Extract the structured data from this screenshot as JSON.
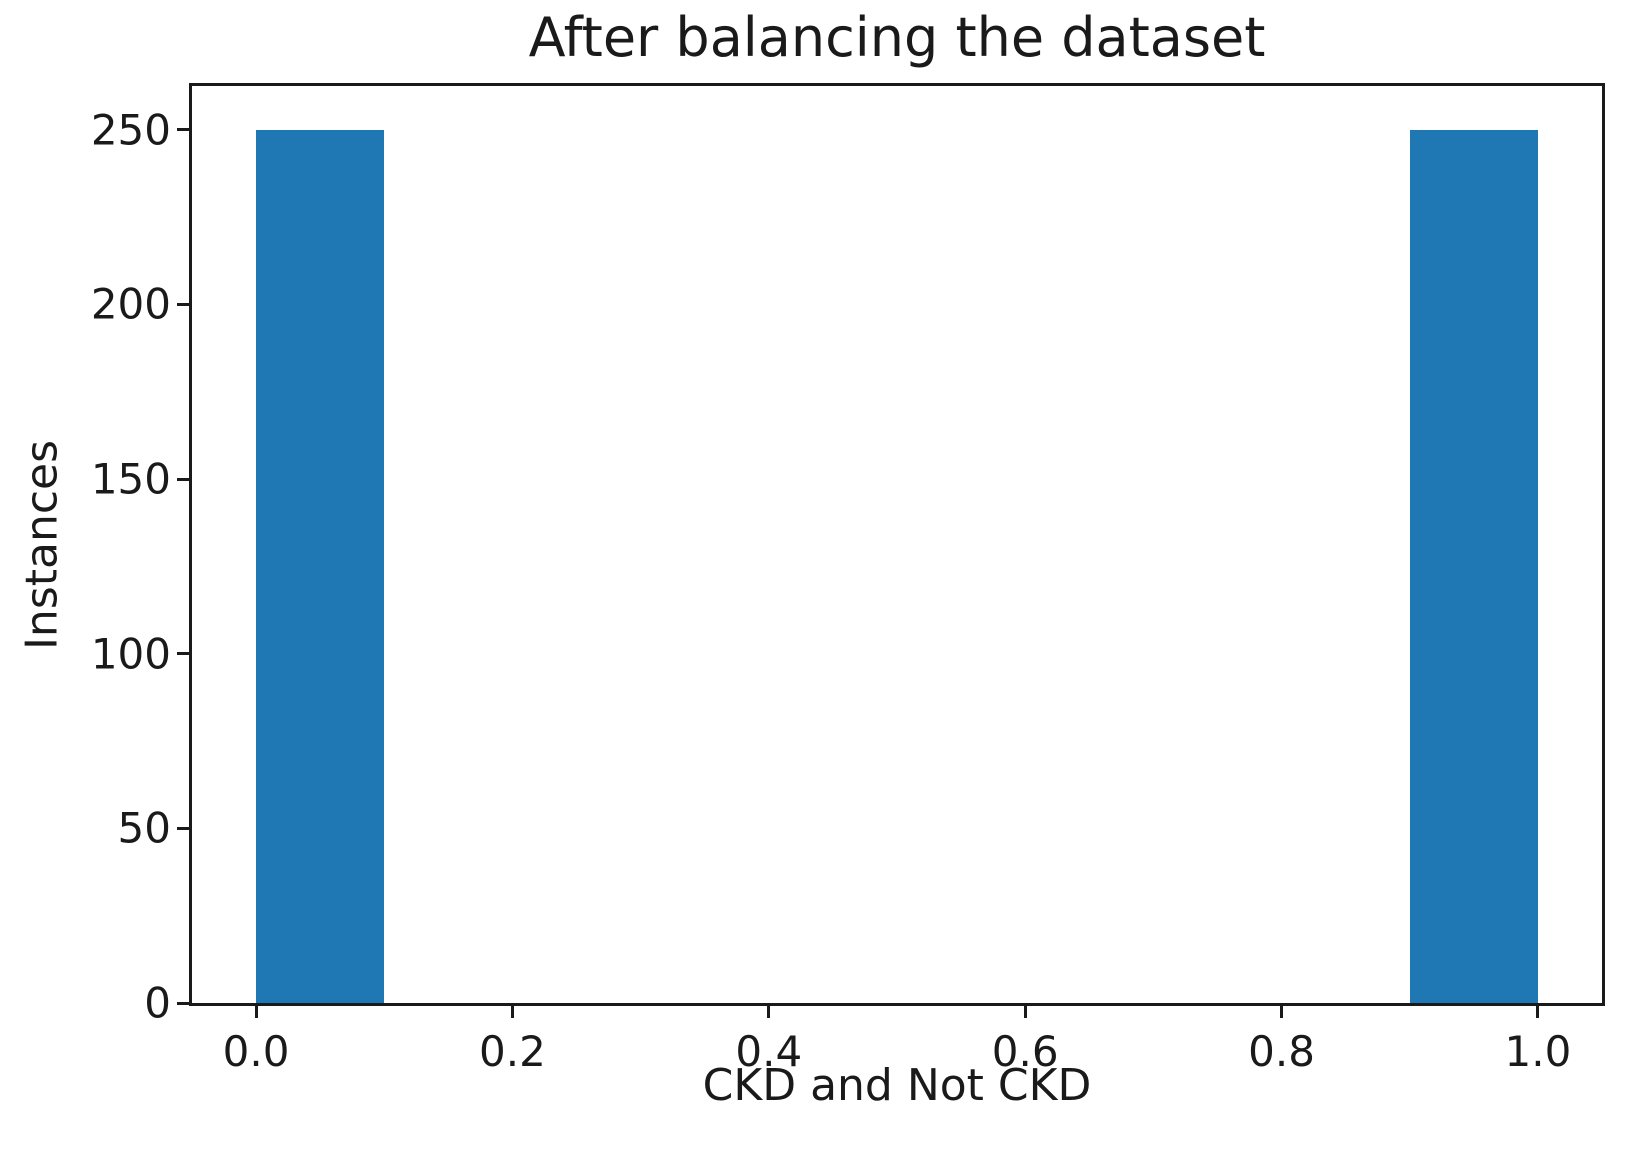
{
  "chart_data": {
    "type": "bar",
    "title": "After balancing the dataset",
    "xlabel": "CKD and Not CKD",
    "ylabel": "Instances",
    "bar_color": "#1f77b4",
    "axis_color": "#1a1a1a",
    "background_color": "#ffffff",
    "grid": false,
    "legend_position": "none",
    "xlim": [
      -0.05,
      1.05
    ],
    "ylim": [
      0,
      262.5
    ],
    "bars": [
      {
        "x_start": 0.0,
        "x_end": 0.1,
        "value": 250
      },
      {
        "x_start": 0.9,
        "x_end": 1.0,
        "value": 250
      }
    ],
    "xticks": [
      {
        "value": 0.0,
        "label": "0.0"
      },
      {
        "value": 0.2,
        "label": "0.2"
      },
      {
        "value": 0.4,
        "label": "0.4"
      },
      {
        "value": 0.6,
        "label": "0.6"
      },
      {
        "value": 0.8,
        "label": "0.8"
      },
      {
        "value": 1.0,
        "label": "1.0"
      }
    ],
    "yticks": [
      {
        "value": 0,
        "label": "0"
      },
      {
        "value": 50,
        "label": "50"
      },
      {
        "value": 100,
        "label": "100"
      },
      {
        "value": 150,
        "label": "150"
      },
      {
        "value": 200,
        "label": "200"
      },
      {
        "value": 250,
        "label": "250"
      }
    ]
  }
}
